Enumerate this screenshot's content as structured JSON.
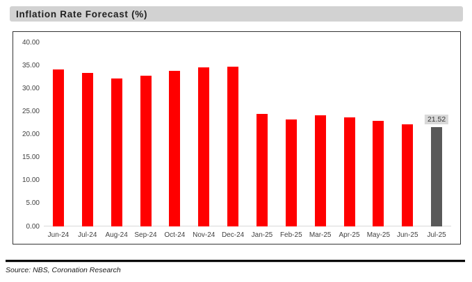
{
  "header": {
    "title": "Inflation Rate Forecast (%)"
  },
  "footer": {
    "source": "Source: NBS, Coronation Research"
  },
  "colors": {
    "bar_red": "#FF0000",
    "forecast_gray": "#595959",
    "data_label_bg": "#D9D9D9",
    "title_bar_bg": "#D2D2D2",
    "axis_text": "#404040",
    "frame_border": "#333333",
    "baseline": "#D9D9D9"
  },
  "chart_data": {
    "type": "bar",
    "title": "Inflation Rate Forecast (%)",
    "xlabel": "",
    "ylabel": "",
    "ylim": [
      0,
      40
    ],
    "grid": false,
    "legend": false,
    "y_tick_labels": [
      "40.00",
      "35.00",
      "30.00",
      "25.00",
      "20.00",
      "15.00",
      "10.00",
      "5.00",
      "0.00"
    ],
    "categories": [
      "Jun-24",
      "Jul-24",
      "Aug-24",
      "Sep-24",
      "Oct-24",
      "Nov-24",
      "Dec-24",
      "Jan-25",
      "Feb-25",
      "Mar-25",
      "Apr-25",
      "May-25",
      "Jun-25",
      "Jul-25"
    ],
    "values": [
      34.19,
      33.4,
      32.15,
      32.7,
      33.88,
      34.6,
      34.8,
      24.48,
      23.18,
      24.23,
      23.71,
      22.97,
      22.22,
      21.52
    ],
    "bar_color": "#FF0000",
    "forecast": {
      "category": "Jul-25",
      "index": 13,
      "color": "#595959",
      "data_label": "21.52",
      "label_bg": "#D9D9D9"
    }
  }
}
